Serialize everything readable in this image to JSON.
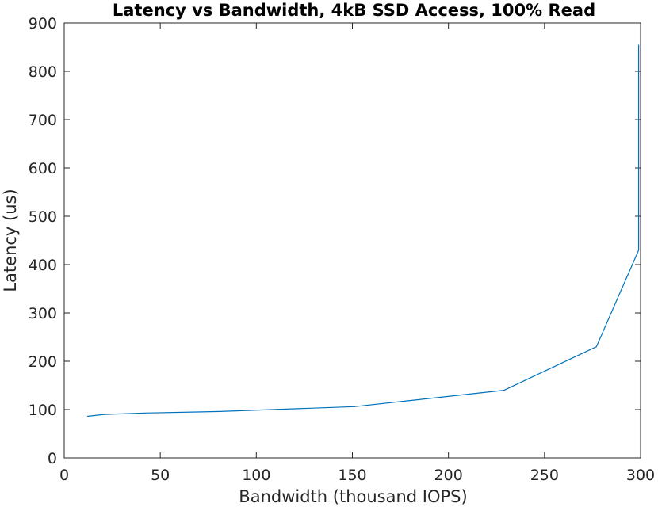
{
  "chart_data": {
    "type": "line",
    "title": "Latency vs Bandwidth, 4kB SSD Access, 100% Read",
    "xlabel": "Bandwidth (thousand IOPS)",
    "ylabel": "Latency (us)",
    "xlim": [
      0,
      300
    ],
    "ylim": [
      0,
      900
    ],
    "xticks": [
      0,
      50,
      100,
      150,
      200,
      250,
      300
    ],
    "yticks": [
      0,
      100,
      200,
      300,
      400,
      500,
      600,
      700,
      800,
      900
    ],
    "grid": false,
    "colors": {
      "line": "#0072BD",
      "axis": "#262626",
      "background": "#ffffff"
    },
    "series": [
      {
        "x": [
          12,
          21,
          42,
          81,
          151,
          229,
          277,
          299,
          299,
          299
        ],
        "y": [
          86,
          90,
          93,
          96,
          106,
          140,
          230,
          430,
          500,
          855
        ]
      }
    ]
  }
}
